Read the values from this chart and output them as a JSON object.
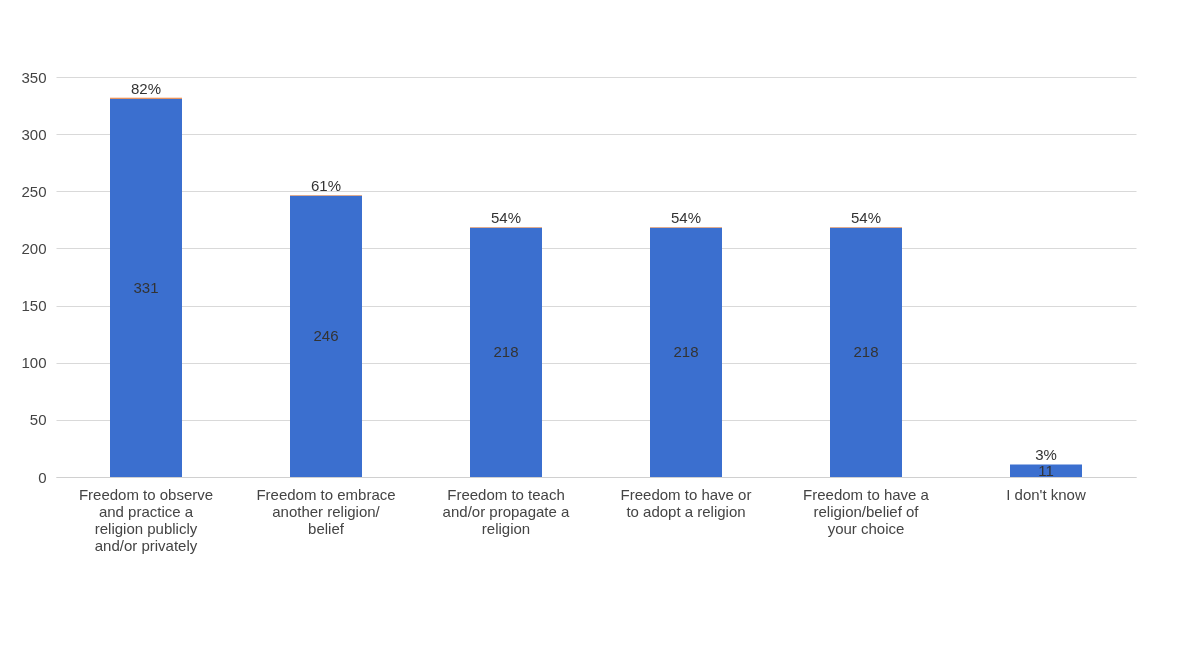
{
  "chart_data": {
    "type": "bar",
    "stacked": true,
    "categories": [
      "Freedom to observe and practice a religion publicly and/or privately",
      "Freedom to embrace another religion/ belief",
      "Freedom to teach and/or propagate a religion",
      "Freedom to have or to adopt a religion",
      "Freedom to have a religion/belief of your choice",
      "I don't know"
    ],
    "series": [
      {
        "color": "#3b6fcf",
        "values": [
          331,
          246,
          218,
          218,
          218,
          11
        ],
        "value_labels": [
          "331",
          "246",
          "218",
          "218",
          "218",
          "11"
        ]
      },
      {
        "color": "#ed7d31",
        "values": [
          0.82,
          0.61,
          0.54,
          0.54,
          0.54,
          0.03
        ],
        "value_labels": [
          "82%",
          "61%",
          "54%",
          "54%",
          "54%",
          "3%"
        ]
      }
    ],
    "ylim": [
      0,
      350
    ],
    "yticks": [
      0,
      50,
      100,
      150,
      200,
      250,
      300,
      350
    ],
    "grid": "y",
    "legend": false
  }
}
